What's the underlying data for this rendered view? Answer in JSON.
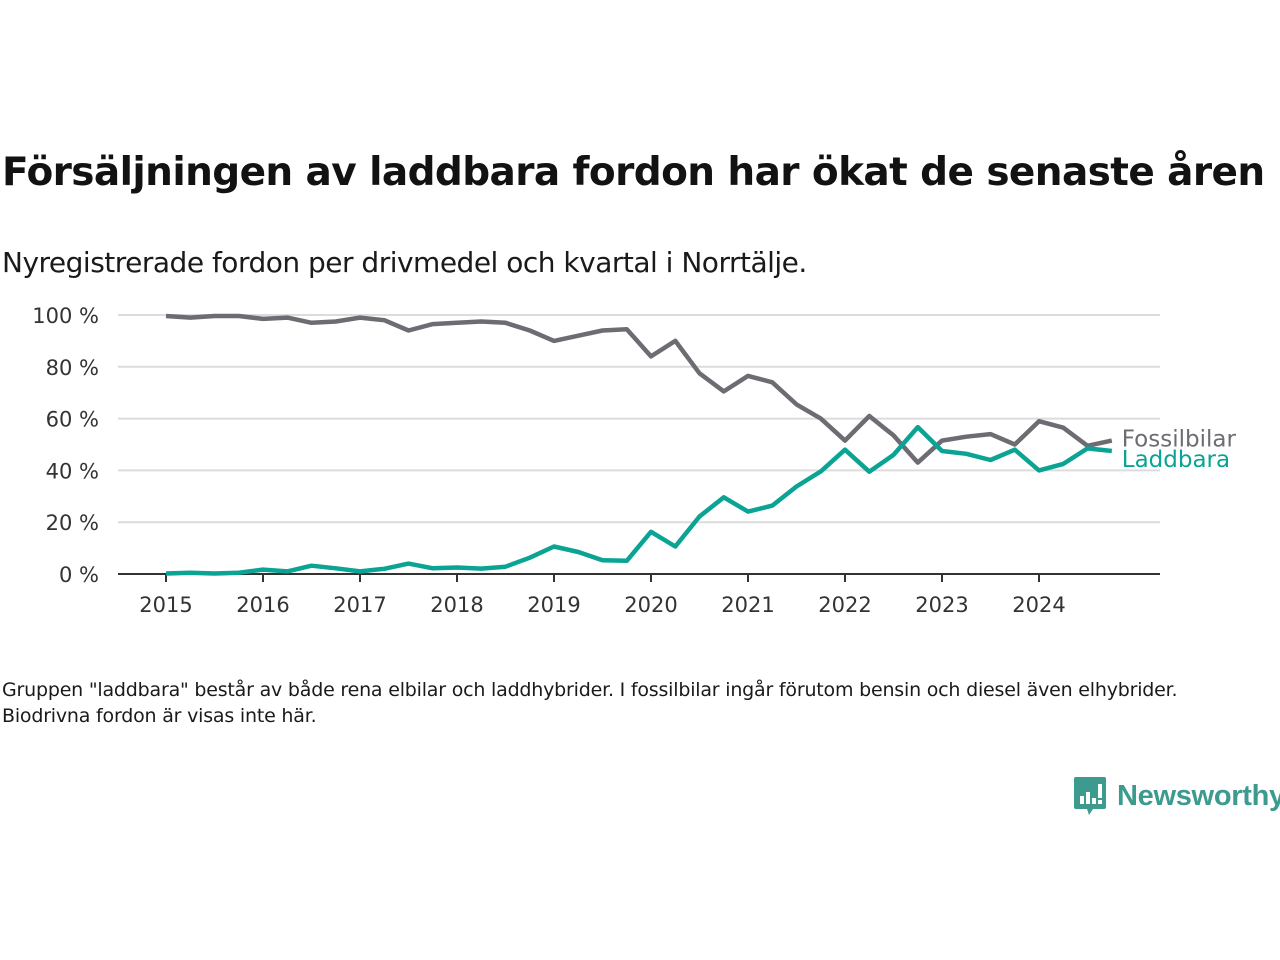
{
  "title": "Försäljningen av laddbara fordon har ökat de senaste åren",
  "subtitle": "Nyregistrerade fordon per drivmedel och kvartal i Norrtälje.",
  "footnote": "Gruppen \"laddbara\" består av både rena elbilar och laddhybrider. I fossilbilar ingår förutom bensin och diesel även elhybrider. Biodrivna fordon är visas inte här.",
  "logo": {
    "text": "Newsworthy",
    "icon": "bar-chart-speech-bubble-icon",
    "color": "#3c9a8f"
  },
  "chart_data": {
    "type": "line",
    "title": "Försäljningen av laddbara fordon har ökat de senaste åren",
    "subtitle": "Nyregistrerade fordon per drivmedel och kvartal i Norrtälje.",
    "xlabel": "",
    "ylabel": "",
    "x": [
      "2015Q1",
      "2015Q2",
      "2015Q3",
      "2015Q4",
      "2016Q1",
      "2016Q2",
      "2016Q3",
      "2016Q4",
      "2017Q1",
      "2017Q2",
      "2017Q3",
      "2017Q4",
      "2018Q1",
      "2018Q2",
      "2018Q3",
      "2018Q4",
      "2019Q1",
      "2019Q2",
      "2019Q3",
      "2019Q4",
      "2020Q1",
      "2020Q2",
      "2020Q3",
      "2020Q4",
      "2021Q1",
      "2021Q2",
      "2021Q3",
      "2021Q4",
      "2022Q1",
      "2022Q2",
      "2022Q3",
      "2022Q4",
      "2023Q1",
      "2023Q2",
      "2023Q3",
      "2023Q4",
      "2024Q1",
      "2024Q2",
      "2024Q3",
      "2024Q4"
    ],
    "xticks": [
      "2015",
      "2016",
      "2017",
      "2018",
      "2019",
      "2020",
      "2021",
      "2022",
      "2023",
      "2024"
    ],
    "yticks": [
      "0 %",
      "20 %",
      "40 %",
      "60 %",
      "80 %",
      "100 %"
    ],
    "ytick_values": [
      0,
      20,
      40,
      60,
      80,
      100
    ],
    "ylim": [
      0,
      100
    ],
    "grid": true,
    "legend": "direct-labels-right",
    "series": [
      {
        "name": "Fossilbilar",
        "color": "#6d6c72",
        "values": [
          99.6,
          99,
          99.6,
          99.6,
          98.5,
          99,
          97,
          97.5,
          99,
          98,
          94,
          96.5,
          97,
          97.5,
          97,
          94,
          90,
          92,
          94,
          94.5,
          84,
          90,
          77.5,
          70.5,
          76.5,
          74,
          65.5,
          60,
          51.5,
          61,
          53.5,
          43,
          51.5,
          53,
          54,
          50,
          59,
          56.5,
          49.5,
          51.5
        ]
      },
      {
        "name": "Laddbara",
        "color": "#0aa394",
        "values": [
          0.2,
          0.5,
          0.2,
          0.5,
          1.7,
          1,
          3.2,
          2.2,
          1,
          2,
          4,
          2.2,
          2.5,
          2.1,
          2.8,
          6.3,
          10.6,
          8.5,
          5.3,
          5.1,
          16.3,
          10.6,
          22.2,
          29.6,
          24.1,
          26.4,
          33.8,
          39.6,
          48,
          39.5,
          46,
          56.7,
          47.5,
          46.4,
          44,
          48,
          40,
          42.5,
          48.5,
          47.5
        ]
      }
    ]
  }
}
